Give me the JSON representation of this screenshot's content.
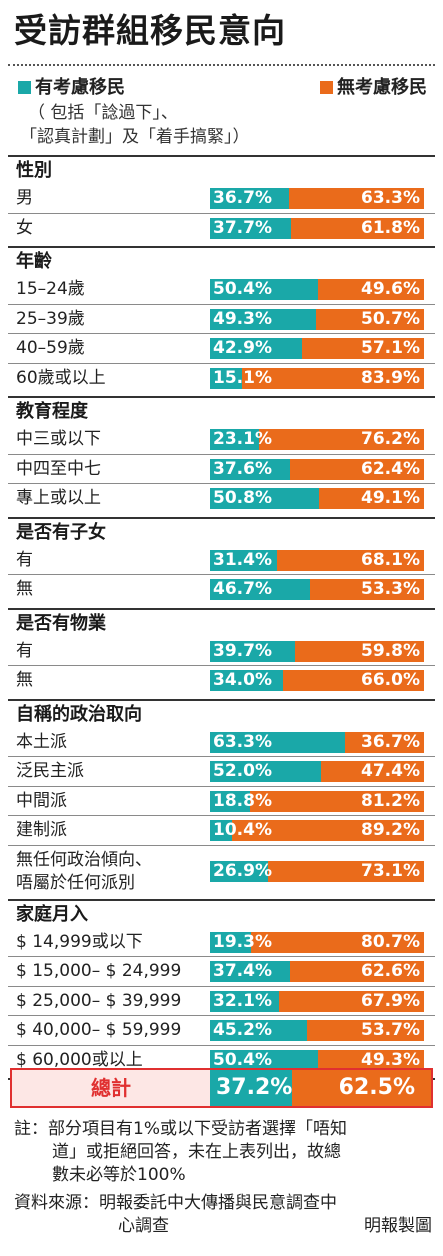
{
  "title": "受訪群組移民意向",
  "legend": {
    "yes_label": "有考慮移民",
    "no_label": "無考慮移民",
    "yes_note_1": "（ 包括「諗過下」、",
    "yes_note_2": "「認真計劃」及「着手搞緊」）"
  },
  "colors": {
    "yes": "#1aa8a8",
    "no": "#ea6b1b",
    "total_border": "#e03030"
  },
  "chart_data": {
    "type": "bar",
    "stacked": true,
    "orientation": "horizontal",
    "series_names": [
      "有考慮移民",
      "無考慮移民"
    ],
    "groups": [
      {
        "title": "性別",
        "rows": [
          {
            "label": "男",
            "yes": 36.7,
            "no": 63.3,
            "yes_text": "36.7%",
            "no_text": "63.3%"
          },
          {
            "label": "女",
            "yes": 37.7,
            "no": 61.8,
            "yes_text": "37.7%",
            "no_text": "61.8%"
          }
        ]
      },
      {
        "title": "年齡",
        "rows": [
          {
            "label": "15–24歲",
            "yes": 50.4,
            "no": 49.6,
            "yes_text": "50.4%",
            "no_text": "49.6%"
          },
          {
            "label": "25–39歲",
            "yes": 49.3,
            "no": 50.7,
            "yes_text": "49.3%",
            "no_text": "50.7%"
          },
          {
            "label": "40–59歲",
            "yes": 42.9,
            "no": 57.1,
            "yes_text": "42.9%",
            "no_text": "57.1%"
          },
          {
            "label": "60歲或以上",
            "yes": 15.1,
            "no": 83.9,
            "yes_text": "15.1%",
            "no_text": "83.9%"
          }
        ]
      },
      {
        "title": "教育程度",
        "rows": [
          {
            "label": "中三或以下",
            "yes": 23.1,
            "no": 76.2,
            "yes_text": "23.1%",
            "no_text": "76.2%"
          },
          {
            "label": "中四至中七",
            "yes": 37.6,
            "no": 62.4,
            "yes_text": "37.6%",
            "no_text": "62.4%"
          },
          {
            "label": "專上或以上",
            "yes": 50.8,
            "no": 49.1,
            "yes_text": "50.8%",
            "no_text": "49.1%"
          }
        ]
      },
      {
        "title": "是否有子女",
        "rows": [
          {
            "label": "有",
            "yes": 31.4,
            "no": 68.1,
            "yes_text": "31.4%",
            "no_text": "68.1%"
          },
          {
            "label": "無",
            "yes": 46.7,
            "no": 53.3,
            "yes_text": "46.7%",
            "no_text": "53.3%"
          }
        ]
      },
      {
        "title": "是否有物業",
        "rows": [
          {
            "label": "有",
            "yes": 39.7,
            "no": 59.8,
            "yes_text": "39.7%",
            "no_text": "59.8%"
          },
          {
            "label": "無",
            "yes": 34.0,
            "no": 66.0,
            "yes_text": "34.0%",
            "no_text": "66.0%"
          }
        ]
      },
      {
        "title": "自稱的政治取向",
        "rows": [
          {
            "label": "本土派",
            "yes": 63.3,
            "no": 36.7,
            "yes_text": "63.3%",
            "no_text": "36.7%"
          },
          {
            "label": "泛民主派",
            "yes": 52.0,
            "no": 47.4,
            "yes_text": "52.0%",
            "no_text": "47.4%"
          },
          {
            "label": "中間派",
            "yes": 18.8,
            "no": 81.2,
            "yes_text": "18.8%",
            "no_text": "81.2%"
          },
          {
            "label": "建制派",
            "yes": 10.4,
            "no": 89.2,
            "yes_text": "10.4%",
            "no_text": "89.2%"
          },
          {
            "label": "無任何政治傾向、",
            "label2": "唔屬於任何派別",
            "yes": 26.9,
            "no": 73.1,
            "yes_text": "26.9%",
            "no_text": "73.1%"
          }
        ]
      },
      {
        "title": "家庭月入",
        "rows": [
          {
            "label": "$ 14,999或以下",
            "yes": 19.3,
            "no": 80.7,
            "yes_text": "19.3%",
            "no_text": "80.7%"
          },
          {
            "label": "$ 15,000– $ 24,999",
            "yes": 37.4,
            "no": 62.6,
            "yes_text": "37.4%",
            "no_text": "62.6%"
          },
          {
            "label": "$ 25,000– $ 39,999",
            "yes": 32.1,
            "no": 67.9,
            "yes_text": "32.1%",
            "no_text": "67.9%"
          },
          {
            "label": "$ 40,000– $ 59,999",
            "yes": 45.2,
            "no": 53.7,
            "yes_text": "45.2%",
            "no_text": "53.7%"
          },
          {
            "label": "$ 60,000或以上",
            "yes": 50.4,
            "no": 49.3,
            "yes_text": "50.4%",
            "no_text": "49.3%"
          }
        ]
      }
    ],
    "total": {
      "label": "總計",
      "yes": 37.2,
      "no": 62.5,
      "yes_text": "37.2%",
      "no_text": "62.5%"
    }
  },
  "note": {
    "line1": "註：部分項目有1%或以下受訪者選擇「唔知",
    "line2": "道」或拒絕回答，未在上表列出，故總",
    "line3": "數未必等於100%"
  },
  "source": {
    "line1": "資料來源：明報委託中大傳播與民意調查中",
    "line2": "心調查",
    "credit": "明報製圖"
  }
}
